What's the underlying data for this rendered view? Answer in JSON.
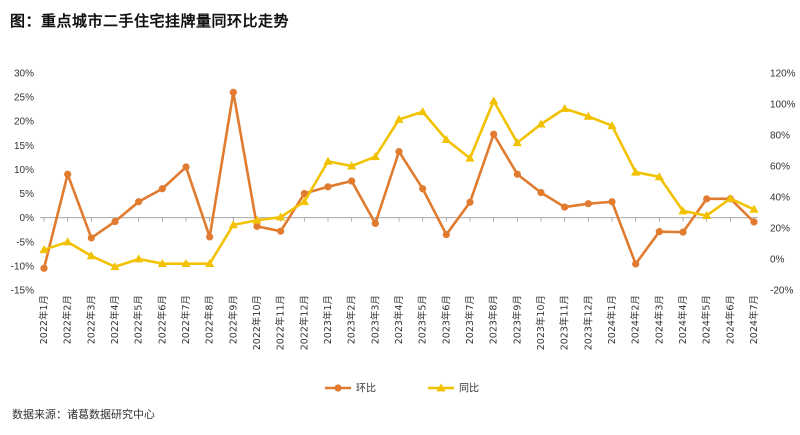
{
  "header": {
    "title": "图：重点城市二手住宅挂牌量同环比走势"
  },
  "footer": {
    "source": "数据来源：诸葛数据研究中心"
  },
  "colors": {
    "huanbi": "#E07B2F",
    "tongbi": "#F2C200",
    "axis": "#999999"
  },
  "chart_data": {
    "type": "line",
    "categories": [
      "2022年1月",
      "2022年2月",
      "2022年3月",
      "2022年4月",
      "2022年5月",
      "2022年6月",
      "2022年7月",
      "2022年8月",
      "2022年9月",
      "2022年10月",
      "2022年11月",
      "2022年12月",
      "2023年1月",
      "2023年2月",
      "2023年3月",
      "2023年4月",
      "2023年5月",
      "2023年6月",
      "2023年7月",
      "2023年8月",
      "2023年9月",
      "2023年10月",
      "2023年11月",
      "2023年12月",
      "2024年1月",
      "2024年2月",
      "2024年3月",
      "2024年4月",
      "2024年5月",
      "2024年6月",
      "2024年7月"
    ],
    "series": [
      {
        "name": "环比",
        "axis": "left",
        "marker": "circle",
        "values": [
          -10.5,
          9.0,
          -4.2,
          -0.8,
          3.3,
          6.0,
          10.5,
          -4.0,
          26.0,
          -1.8,
          -2.8,
          5.0,
          6.4,
          7.6,
          -1.2,
          13.7,
          6.0,
          -3.5,
          3.2,
          17.3,
          9.0,
          5.2,
          2.2,
          2.9,
          3.3,
          -9.6,
          -2.9,
          -3.0,
          3.9,
          3.9,
          -0.9
        ]
      },
      {
        "name": "同比",
        "axis": "right",
        "marker": "triangle",
        "values": [
          6,
          11,
          2,
          -5,
          0,
          -3,
          -3,
          -3,
          22,
          25,
          27,
          37,
          63,
          60,
          66,
          90,
          95,
          77,
          65,
          102,
          75,
          87,
          97,
          92,
          86,
          56,
          53,
          31,
          28,
          39,
          32
        ]
      }
    ],
    "y_left": {
      "min": -15,
      "max": 30,
      "step": 5,
      "format": "percent"
    },
    "y_right": {
      "min": -20,
      "max": 120,
      "step": 20,
      "format": "percent"
    },
    "legend": {
      "position": "bottom"
    },
    "grid": false
  }
}
